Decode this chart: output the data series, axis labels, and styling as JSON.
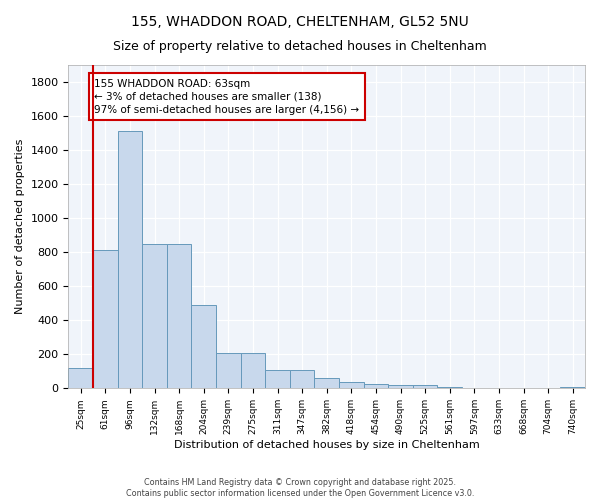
{
  "title": "155, WHADDON ROAD, CHELTENHAM, GL52 5NU",
  "subtitle": "Size of property relative to detached houses in Cheltenham",
  "xlabel": "Distribution of detached houses by size in Cheltenham",
  "ylabel": "Number of detached properties",
  "bar_labels": [
    "25sqm",
    "61sqm",
    "96sqm",
    "132sqm",
    "168sqm",
    "204sqm",
    "239sqm",
    "275sqm",
    "311sqm",
    "347sqm",
    "382sqm",
    "418sqm",
    "454sqm",
    "490sqm",
    "525sqm",
    "561sqm",
    "597sqm",
    "633sqm",
    "668sqm",
    "704sqm",
    "740sqm"
  ],
  "bar_values": [
    120,
    810,
    1510,
    850,
    850,
    490,
    210,
    210,
    110,
    110,
    60,
    40,
    28,
    22,
    18,
    10,
    4,
    4,
    2,
    2,
    8
  ],
  "bar_color": "#c8d8ec",
  "bar_edge_color": "#6699bb",
  "ylim": [
    0,
    1900
  ],
  "yticks": [
    0,
    200,
    400,
    600,
    800,
    1000,
    1200,
    1400,
    1600,
    1800
  ],
  "property_line_color": "#cc0000",
  "annotation_text": "155 WHADDON ROAD: 63sqm\n← 3% of detached houses are smaller (138)\n97% of semi-detached houses are larger (4,156) →",
  "annotation_box_facecolor": "#ffffff",
  "annotation_box_edgecolor": "#cc0000",
  "footer_line1": "Contains HM Land Registry data © Crown copyright and database right 2025.",
  "footer_line2": "Contains public sector information licensed under the Open Government Licence v3.0.",
  "bg_color": "#ffffff",
  "plot_bg_color": "#f0f4fa",
  "grid_color": "#ffffff",
  "title_fontsize": 10,
  "subtitle_fontsize": 9,
  "ylabel_fontsize": 8,
  "xlabel_fontsize": 8
}
